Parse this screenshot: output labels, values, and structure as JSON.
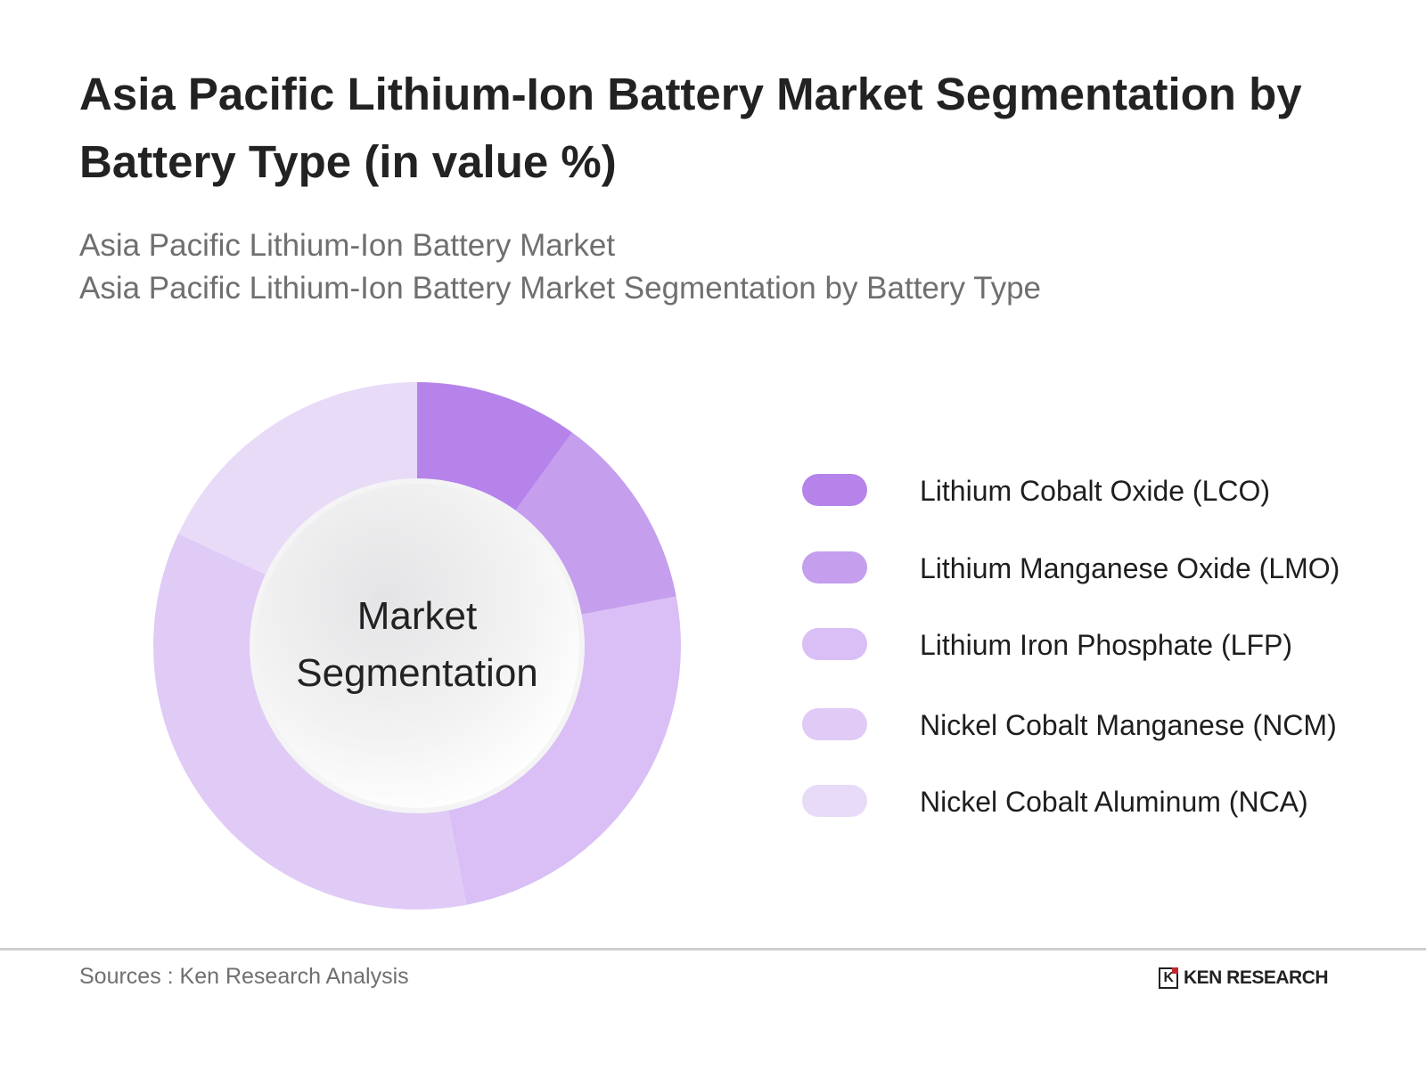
{
  "header": {
    "title": "Asia Pacific Lithium-Ion Battery Market Segmentation by Battery Type  (in value %)",
    "subtitle_1": "Asia Pacific Lithium-Ion Battery Market",
    "subtitle_2": "Asia Pacific Lithium-Ion Battery Market Segmentation by Battery Type"
  },
  "chart_data": {
    "type": "pie",
    "variant": "donut",
    "center_label_1": "Market",
    "center_label_2": "Segmentation",
    "categories": [
      "Lithium Cobalt Oxide (LCO)",
      "Lithium Manganese Oxide (LMO)",
      "Lithium Iron Phosphate (LFP)",
      "Nickel Cobalt Manganese (NCM)",
      "Nickel Cobalt Aluminum (NCA)"
    ],
    "values": [
      10,
      12,
      25,
      35,
      18
    ],
    "colors": [
      "#b583ea",
      "#c59eee",
      "#d9bff5",
      "#dfcbf5",
      "#e8dbf8"
    ],
    "legend_position": "right",
    "data_labels": false
  },
  "footer": {
    "source": "Sources : Ken Research Analysis",
    "logo_text": "KEN RESEARCH",
    "logo_mark": "K"
  }
}
